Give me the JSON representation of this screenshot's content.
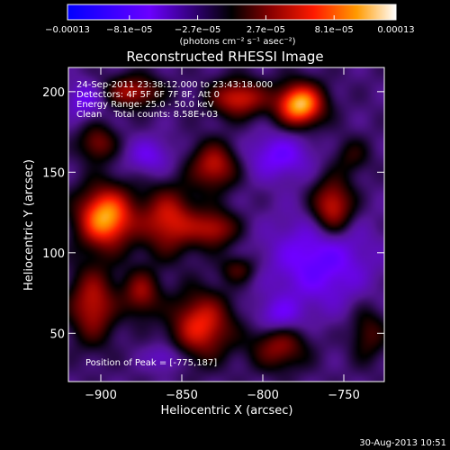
{
  "chart_data": {
    "type": "heatmap",
    "title": "Reconstructed RHESSI Image",
    "xlabel": "Heliocentric X (arcsec)",
    "ylabel": "Heliocentric Y (arcsec)",
    "xlim": [
      -920,
      -725
    ],
    "ylim": [
      20,
      215
    ],
    "x_ticks": [
      -900,
      -850,
      -800,
      -750
    ],
    "x_tick_labels": [
      "−900",
      "−850",
      "−800",
      "−750"
    ],
    "y_ticks": [
      50,
      100,
      150,
      200
    ],
    "y_tick_labels": [
      "50",
      "100",
      "150",
      "200"
    ],
    "grid": false,
    "colorbar": {
      "min": -0.00013,
      "max": 0.00013,
      "ticks": [
        -0.00013,
        -8.1e-05,
        -2.7e-05,
        2.7e-05,
        8.1e-05,
        0.00013
      ],
      "tick_labels": [
        "−0.00013",
        "−8.1e−05",
        "−2.7e−05",
        "2.7e−05",
        "8.1e−05",
        "0.00013"
      ],
      "units": "(photons cm⁻² s⁻¹ asec⁻²)"
    },
    "annotations": {
      "time": "24-Sep-2011 23:38:12.000 to 23:43:18.000",
      "detectors": "Detectors: 4F 5F 6F 7F 8F, Att 0",
      "energy": "Energy Range: 25.0 - 50.0 keV",
      "clean": "Clean    Total counts: 8.58E+03",
      "peak": "Position of Peak = [-775,187]"
    },
    "peak": {
      "x": -775,
      "y": 187
    },
    "sources": [
      {
        "x": -777,
        "y": 192,
        "sx": 10,
        "sy": 9,
        "a": 1.0
      },
      {
        "x": -897,
        "y": 122,
        "sx": 12,
        "sy": 13,
        "a": 0.95
      },
      {
        "x": -815,
        "y": 196,
        "sx": 12,
        "sy": 8,
        "a": 0.6
      },
      {
        "x": -880,
        "y": 200,
        "sx": 12,
        "sy": 7,
        "a": 0.5
      },
      {
        "x": -830,
        "y": 154,
        "sx": 10,
        "sy": 10,
        "a": 0.55
      },
      {
        "x": -858,
        "y": 120,
        "sx": 12,
        "sy": 14,
        "a": 0.6
      },
      {
        "x": -830,
        "y": 115,
        "sx": 10,
        "sy": 8,
        "a": 0.5
      },
      {
        "x": -757,
        "y": 128,
        "sx": 9,
        "sy": 12,
        "a": 0.65
      },
      {
        "x": -902,
        "y": 168,
        "sx": 8,
        "sy": 8,
        "a": 0.4
      },
      {
        "x": -838,
        "y": 55,
        "sx": 13,
        "sy": 14,
        "a": 0.65
      },
      {
        "x": -905,
        "y": 68,
        "sx": 10,
        "sy": 16,
        "a": 0.55
      },
      {
        "x": -875,
        "y": 75,
        "sx": 8,
        "sy": 10,
        "a": 0.45
      },
      {
        "x": -790,
        "y": 42,
        "sx": 12,
        "sy": 10,
        "a": 0.45
      },
      {
        "x": -735,
        "y": 50,
        "sx": 8,
        "sy": 12,
        "a": 0.3
      },
      {
        "x": -815,
        "y": 90,
        "sx": 8,
        "sy": 6,
        "a": 0.3
      },
      {
        "x": -745,
        "y": 160,
        "sx": 8,
        "sy": 8,
        "a": 0.22
      },
      {
        "x": -790,
        "y": 160,
        "sx": 14,
        "sy": 10,
        "a": -0.35
      },
      {
        "x": -765,
        "y": 95,
        "sx": 22,
        "sy": 20,
        "a": -0.4
      },
      {
        "x": -910,
        "y": 195,
        "sx": 8,
        "sy": 8,
        "a": -0.3
      },
      {
        "x": -870,
        "y": 160,
        "sx": 10,
        "sy": 8,
        "a": -0.28
      },
      {
        "x": -790,
        "y": 60,
        "sx": 10,
        "sy": 8,
        "a": -0.3
      },
      {
        "x": -860,
        "y": 35,
        "sx": 8,
        "sy": 6,
        "a": -0.25
      }
    ]
  },
  "footer": {
    "timestamp": "30-Aug-2013 10:51"
  }
}
